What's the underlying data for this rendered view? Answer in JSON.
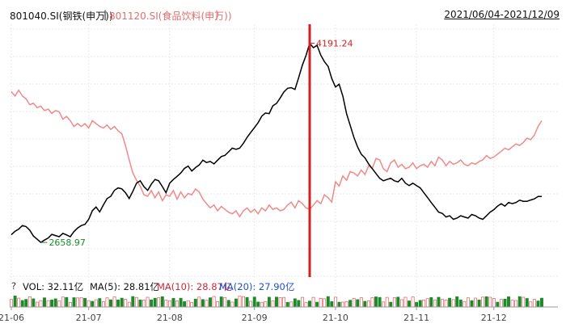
{
  "header": {
    "series_a": "801040.SI(钢铁(申万))",
    "sep1": "|",
    "series_b": "801120.SI(食品饮料(申万))",
    "sep2": "|",
    "date_range": "2021/06/04-2021/12/09"
  },
  "volume_bar": {
    "help_icon": "?",
    "vol": "VOL: 32.11亿",
    "ma5": "MA(5): 28.81亿",
    "ma10": "MA(10): 28.87亿",
    "ma20": "MA(20): 27.90亿"
  },
  "colors": {
    "series_a": "#000000",
    "series_b": "#f08a8a",
    "marker": "#d42020",
    "max_label": "#d42020",
    "min_label": "#1a8a2a",
    "vol_up": "#e05a5a",
    "vol_down": "#1a8a2a"
  },
  "chart_data": {
    "type": "line",
    "xlabel": "",
    "ylabel": "",
    "x_ticks": [
      "21-06",
      "21-07",
      "21-08",
      "21-09",
      "21-10",
      "21-11",
      "21-12"
    ],
    "grid": true,
    "legend_position": "top-left",
    "annotations": {
      "max": {
        "label": "4191.24",
        "value": 4191.24
      },
      "min": {
        "label": "2658.97",
        "value": 2658.97
      }
    },
    "series": [
      {
        "name": "801040.SI(钢铁(申万))",
        "values": [
          2719,
          2746,
          2762,
          2790,
          2782,
          2754,
          2709,
          2685,
          2660,
          2678,
          2694,
          2722,
          2713,
          2704,
          2730,
          2718,
          2704,
          2743,
          2771,
          2790,
          2799,
          2838,
          2904,
          2932,
          2894,
          2949,
          2997,
          3015,
          3061,
          3079,
          3072,
          3042,
          2998,
          3053,
          3116,
          3134,
          3089,
          3060,
          3107,
          3144,
          3134,
          3089,
          3042,
          3116,
          3144,
          3168,
          3194,
          3229,
          3247,
          3209,
          3236,
          3255,
          3292,
          3274,
          3283,
          3264,
          3292,
          3320,
          3329,
          3357,
          3385,
          3376,
          3385,
          3422,
          3468,
          3506,
          3543,
          3580,
          3631,
          3655,
          3650,
          3710,
          3729,
          3771,
          3817,
          3845,
          3850,
          3836,
          3925,
          4022,
          4096,
          4191,
          4157,
          4175,
          4100,
          4050,
          4013,
          3920,
          3855,
          3876,
          3785,
          3650,
          3560,
          3468,
          3395,
          3338,
          3310,
          3264,
          3227,
          3190,
          3153,
          3134,
          3144,
          3153,
          3134,
          3125,
          3153,
          3116,
          3097,
          3115,
          3097,
          3079,
          3042,
          3005,
          2967,
          2930,
          2893,
          2884,
          2856,
          2865,
          2838,
          2847,
          2865,
          2856,
          2847,
          2875,
          2865,
          2847,
          2838,
          2865,
          2893,
          2912,
          2939,
          2958,
          2939,
          2967,
          2958,
          2967,
          2985,
          2976,
          2976,
          2986,
          2995,
          3013,
          3013
        ]
      },
      {
        "name": "801120.SI(食品饮料(申万))",
        "values": [
          74.7,
          74.4,
          74.8,
          74.4,
          74.2,
          73.8,
          73.9,
          73.6,
          73.7,
          73.4,
          73.5,
          73.2,
          73.4,
          73.3,
          72.8,
          73.0,
          72.7,
          72.3,
          72.5,
          72.3,
          72.5,
          72.2,
          72.7,
          72.5,
          72.3,
          72.2,
          72.4,
          72.1,
          72.3,
          72.0,
          71.8,
          71.0,
          70.0,
          69.1,
          68.6,
          68.2,
          67.6,
          67.5,
          67.9,
          67.4,
          67.8,
          67.2,
          67.6,
          67.5,
          67.9,
          67.3,
          67.8,
          67.4,
          67.7,
          67.6,
          68.0,
          67.8,
          67.3,
          67.0,
          66.7,
          66.9,
          66.5,
          66.8,
          66.6,
          66.4,
          66.3,
          66.5,
          66.1,
          66.5,
          66.7,
          66.4,
          66.6,
          66.3,
          66.7,
          66.5,
          66.9,
          66.6,
          66.7,
          66.5,
          66.6,
          66.9,
          67.1,
          66.7,
          67.2,
          67.0,
          66.7,
          66.6,
          66.9,
          67.2,
          67.0,
          67.6,
          67.4,
          67.1,
          68.5,
          68.2,
          68.9,
          68.6,
          69.2,
          69.1,
          68.9,
          69.3,
          69.0,
          69.6,
          69.4,
          70.1,
          70.0,
          69.4,
          69.2,
          69.8,
          70.0,
          69.5,
          69.7,
          69.4,
          69.5,
          69.8,
          69.4,
          69.6,
          69.7,
          69.5,
          69.9,
          69.6,
          70.2,
          70.0,
          69.6,
          69.9,
          69.7,
          69.8,
          70.0,
          69.7,
          69.6,
          69.8,
          69.7,
          69.9,
          70.0,
          70.3,
          70.1,
          70.2,
          70.4,
          70.6,
          70.8,
          70.7,
          70.9,
          71.1,
          71.0,
          71.2,
          71.5,
          71.4,
          71.7,
          72.3,
          72.7
        ]
      }
    ],
    "volume": [
      1.06,
      1.55,
      1.25,
      0.91,
      1.07,
      1.44,
      1.15,
      0.69,
      0.9,
      1.29,
      0.9,
      1.0,
      1.15,
      0.85,
      1.41,
      1.35,
      0.65,
      1.31,
      1.28,
      1.31,
      1.22,
      0.9,
      0.8,
      1.02,
      1.2,
      0.73,
      1.29,
      1.02,
      1.45,
      1.0,
      1.25,
      1.09,
      0.67,
      1.48,
      1.35,
      1.0,
      1.0,
      1.37,
      1.01,
      1.23,
      1.3,
      1.45,
      0.97,
      0.89,
      1.21,
      0.86,
      1.23,
      0.75,
      0.89,
      0.65,
      1.12,
      1.39,
      1.05,
      0.95,
      1.3,
      1.49,
      0.77,
      1.43,
      1.34,
      0.94,
      0.69,
      1.14,
      1.52,
      1.46,
      1.35,
      0.81,
      1.41,
      0.7,
      0.66,
      0.77,
      1.38,
      0.88,
      1.39,
      1.33,
      1.35,
      0.65,
      0.71,
      1.17,
      0.92,
      1.36,
      0.64,
      0.83,
      1.36,
      0.68,
      1.22,
      1.16,
      1.48,
      0.75,
      1.38,
      0.68,
      0.69,
      0.77,
      0.95,
      1.2,
      1.04,
      1.3,
      0.8,
      0.86,
      1.33,
      1.43,
      1.35,
      0.71,
      1.36,
      0.68,
      1.32,
      1.39,
      1.03,
      1.37,
      0.86,
      1.42,
      0.66,
      0.93,
      0.98,
      1.18,
      1.34,
      1.01,
      1.37,
      1.07,
      0.97,
      1.24,
      1.04,
      1.45,
      1.01,
      0.77,
      1.29,
      0.9,
      1.26,
      1.0,
      1.39,
      1.45,
      1.37,
      1.2,
      0.68,
      1.07,
      1.12,
      1.44,
      0.97,
      0.91,
      1.46,
      1.37,
      1.2,
      0.72,
      1.08,
      0.84,
      1.25
    ],
    "volume_up": [
      true,
      false,
      true,
      false,
      false,
      true,
      false,
      true,
      true,
      false,
      true,
      false,
      false,
      true,
      true,
      false,
      true,
      false,
      true,
      true,
      false,
      true,
      false,
      true,
      false,
      true,
      true,
      false,
      true,
      false,
      false,
      true,
      true,
      false,
      true,
      false,
      true,
      true,
      false,
      false,
      true,
      false,
      true,
      true,
      false,
      true,
      false,
      false,
      true,
      true,
      false,
      true,
      false,
      true,
      false,
      true,
      true,
      false,
      true,
      false,
      true,
      false,
      true,
      true,
      false,
      true,
      false,
      false,
      true,
      true,
      false,
      true,
      false,
      true,
      true,
      false,
      true,
      false,
      false,
      true,
      true,
      false,
      true,
      false,
      true,
      true,
      false,
      false,
      true,
      false,
      true,
      true,
      false,
      true,
      false,
      true,
      false,
      true,
      true,
      false,
      false,
      true,
      true,
      false,
      true,
      false,
      true,
      true,
      false,
      true,
      false,
      false,
      true,
      true,
      false,
      true,
      false,
      true,
      true,
      false,
      true,
      false,
      false,
      true,
      true,
      false,
      true,
      false,
      true,
      false,
      true,
      true,
      false,
      true,
      false,
      false,
      true,
      true,
      false,
      true,
      false,
      true,
      true
    ]
  }
}
